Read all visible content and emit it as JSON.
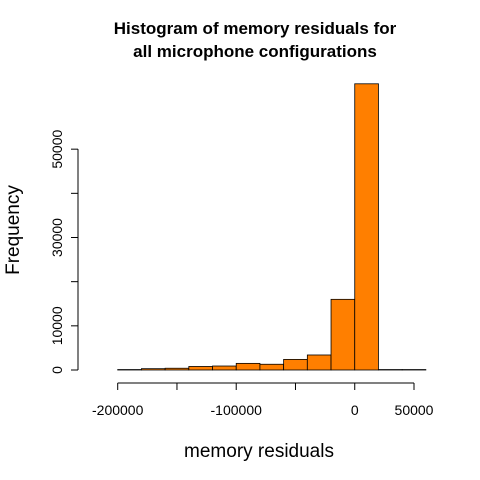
{
  "chart_data": {
    "type": "bar",
    "title_line1": "Histogram of memory residuals for",
    "title_line2": "all microphone configurations",
    "xlabel": "memory residuals",
    "ylabel": "Frequency",
    "bar_color": "#FF7F00",
    "bins": [
      {
        "from": -200000,
        "to": -180000,
        "count": 100
      },
      {
        "from": -180000,
        "to": -160000,
        "count": 300
      },
      {
        "from": -160000,
        "to": -140000,
        "count": 400
      },
      {
        "from": -140000,
        "to": -120000,
        "count": 800
      },
      {
        "from": -120000,
        "to": -100000,
        "count": 900
      },
      {
        "from": -100000,
        "to": -80000,
        "count": 1500
      },
      {
        "from": -80000,
        "to": -60000,
        "count": 1300
      },
      {
        "from": -60000,
        "to": -40000,
        "count": 2400
      },
      {
        "from": -40000,
        "to": -20000,
        "count": 3400
      },
      {
        "from": -20000,
        "to": 0,
        "count": 16000
      },
      {
        "from": 0,
        "to": 20000,
        "count": 64800
      },
      {
        "from": 20000,
        "to": 40000,
        "count": 100
      },
      {
        "from": 40000,
        "to": 60000,
        "count": 100
      }
    ],
    "xlim": [
      -220000,
      50000
    ],
    "ylim": [
      0,
      60000
    ],
    "xticks": [
      -200000,
      -150000,
      -100000,
      -50000,
      0,
      50000
    ],
    "xtick_labels": [
      "-200000",
      "",
      "-100000",
      "",
      "0",
      "50000"
    ],
    "yticks": [
      0,
      10000,
      20000,
      30000,
      40000,
      50000
    ],
    "ytick_labels": [
      "0",
      "10000",
      "",
      "30000",
      "",
      "50000"
    ]
  }
}
